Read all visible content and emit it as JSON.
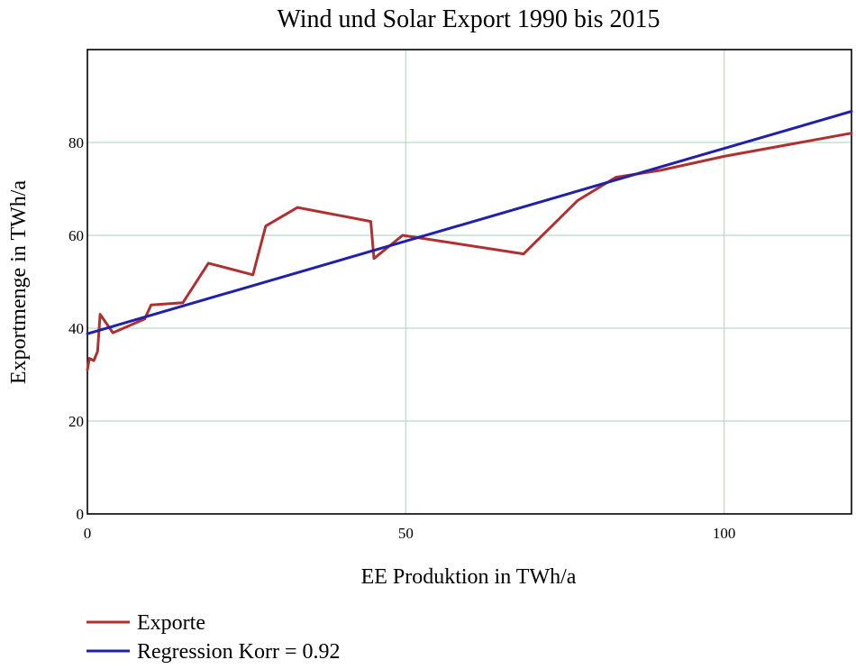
{
  "chart_data": {
    "type": "line",
    "title": "Wind und Solar Export 1990 bis 2015",
    "xlabel": "EE Produktion in TWh/a",
    "ylabel": "Exportmenge in TWh/a",
    "xlim": [
      0,
      120
    ],
    "ylim": [
      0,
      100
    ],
    "xticks": [
      0,
      50,
      100
    ],
    "yticks": [
      0,
      20,
      40,
      60,
      80
    ],
    "grid": true,
    "legend_position": "bottom-left",
    "series": [
      {
        "name": "Exporte",
        "color": "#b03030",
        "points": [
          [
            0,
            31
          ],
          [
            0.3,
            33.5
          ],
          [
            1,
            33
          ],
          [
            1.6,
            35
          ],
          [
            2,
            43
          ],
          [
            4,
            39
          ],
          [
            9,
            42
          ],
          [
            10,
            45
          ],
          [
            15,
            45.5
          ],
          [
            19,
            54
          ],
          [
            26,
            51.5
          ],
          [
            28,
            62
          ],
          [
            33,
            66
          ],
          [
            44.5,
            63
          ],
          [
            45,
            55
          ],
          [
            49.5,
            60
          ],
          [
            68.5,
            56
          ],
          [
            77,
            67.5
          ],
          [
            83,
            72.5
          ],
          [
            90,
            74
          ],
          [
            100,
            77
          ],
          [
            120,
            82
          ]
        ]
      },
      {
        "name": "Regression Korr = 0.92",
        "color": "#2020aa",
        "points": [
          [
            0,
            38.8
          ],
          [
            120,
            86.7
          ]
        ]
      }
    ]
  }
}
